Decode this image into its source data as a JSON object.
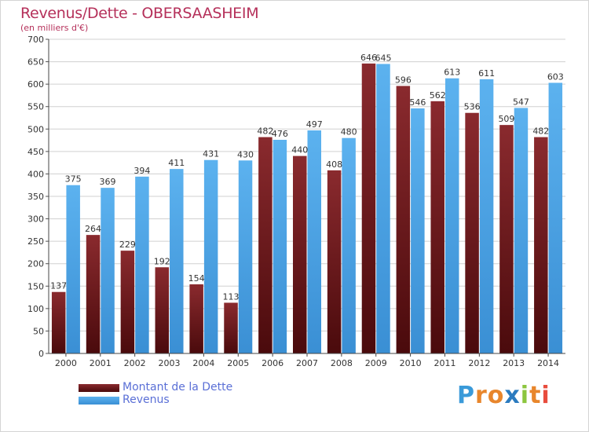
{
  "title": "Revenus/Dette - OBERSAASHEIM",
  "subtitle": "(en milliers d'€)",
  "logo": {
    "letters": [
      "P",
      "r",
      "o",
      "x",
      "i",
      "t",
      "i"
    ],
    "colors": [
      "#3a9ad9",
      "#e8862c",
      "#e8862c",
      "#2b7bbf",
      "#8cc63f",
      "#e8862c",
      "#e84c3d"
    ]
  },
  "colors": {
    "debt": "#6b1a1d",
    "revenue": "#4fa6e6",
    "title": "#b5305a",
    "legend_text": "#5a6fd6",
    "grid": "#d0d0d0"
  },
  "legend": [
    {
      "label": "Montant de la Dette",
      "series": "debt"
    },
    {
      "label": "Revenus",
      "series": "revenue"
    }
  ],
  "chart_data": {
    "type": "bar",
    "title": "Revenus/Dette - OBERSAASHEIM",
    "subtitle": "(en milliers d'€)",
    "categories": [
      "2000",
      "2001",
      "2002",
      "2003",
      "2004",
      "2005",
      "2006",
      "2007",
      "2008",
      "2009",
      "2010",
      "2011",
      "2012",
      "2013",
      "2014"
    ],
    "series": [
      {
        "name": "Montant de la Dette",
        "key": "debt",
        "values": [
          137,
          264,
          229,
          192,
          154,
          113,
          482,
          440,
          408,
          646,
          596,
          562,
          536,
          509,
          482
        ]
      },
      {
        "name": "Revenus",
        "key": "revenue",
        "values": [
          375,
          369,
          394,
          411,
          431,
          430,
          476,
          497,
          480,
          645,
          546,
          613,
          611,
          547,
          603
        ]
      }
    ],
    "ylim": [
      0,
      700
    ],
    "yticks": [
      0,
      50,
      100,
      150,
      200,
      250,
      300,
      350,
      400,
      450,
      500,
      550,
      600,
      650,
      700
    ],
    "grid": true,
    "legend_position": "bottom-left"
  }
}
